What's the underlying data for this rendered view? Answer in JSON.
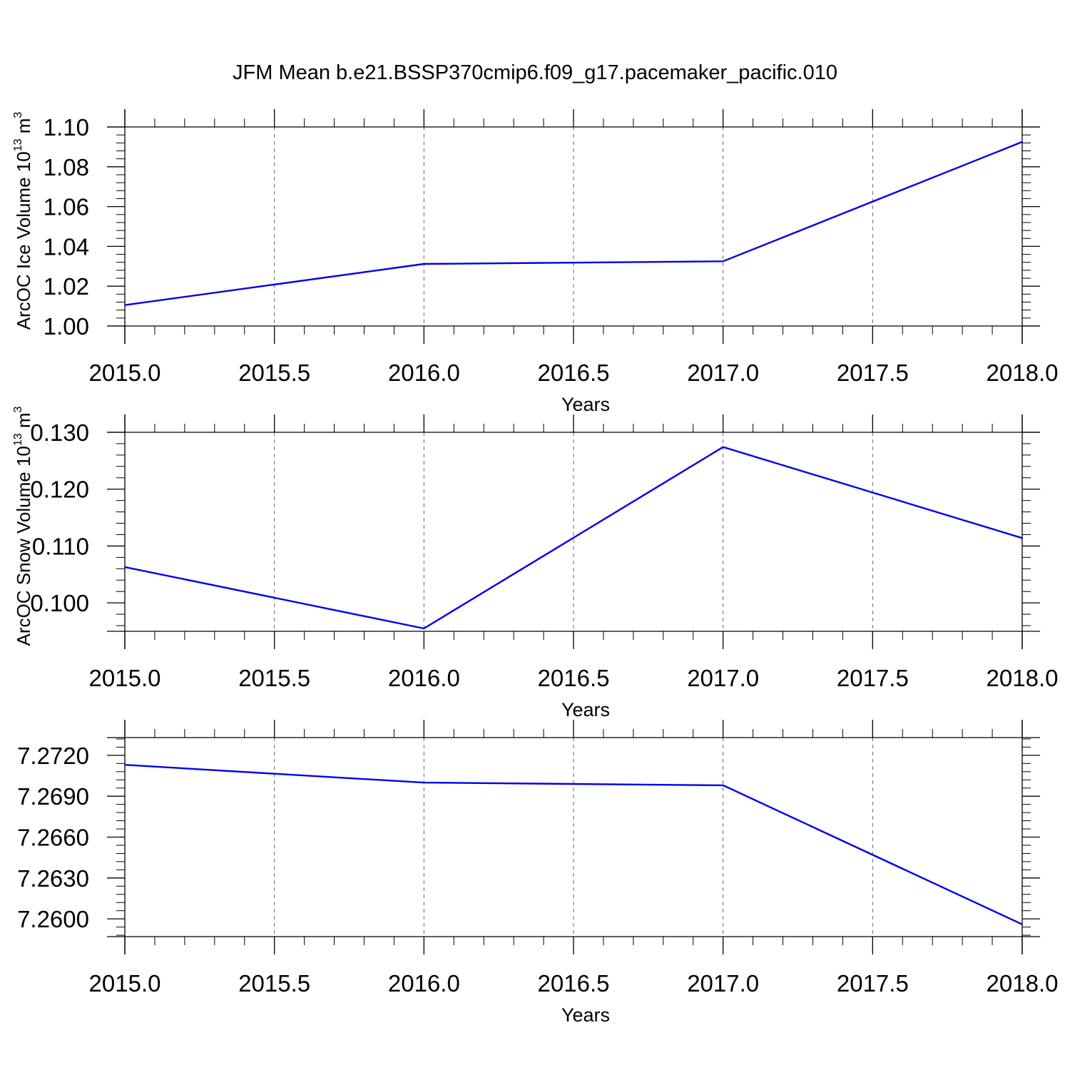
{
  "figure": {
    "title": "JFM Mean b.e21.BSSP370cmip6.f09_g17.pacemaker_pacific.010"
  },
  "colors": {
    "series": "#0000ee",
    "grid": "#666666",
    "frame": "#000000"
  },
  "chart_data": [
    {
      "type": "line",
      "title": "",
      "xlabel": "Years",
      "ylabel": {
        "text": "ArcOC Ice Volume 10",
        "sup1": "13",
        "mid": " m",
        "sup2": "3"
      },
      "xlim": [
        2015.0,
        2018.0
      ],
      "ylim": [
        1.0,
        1.1
      ],
      "xticks": [
        2015.0,
        2015.5,
        2016.0,
        2016.5,
        2017.0,
        2017.5,
        2018.0
      ],
      "xtick_labels": [
        "2015.0",
        "2015.5",
        "2016.0",
        "2016.5",
        "2017.0",
        "2017.5",
        "2018.0"
      ],
      "yticks": [
        1.0,
        1.02,
        1.04,
        1.06,
        1.08,
        1.1
      ],
      "ytick_labels": [
        "1.00",
        "1.02",
        "1.04",
        "1.06",
        "1.08",
        "1.10"
      ],
      "grid": "x-dashed",
      "series": [
        {
          "x": [
            2015.0,
            2016.0,
            2017.0,
            2018.0
          ],
          "y": [
            1.0105,
            1.0312,
            1.0325,
            1.0925
          ]
        }
      ]
    },
    {
      "type": "line",
      "title": "",
      "xlabel": "Years",
      "ylabel": {
        "text": "ArcOC Snow Volume 10",
        "sup1": "13",
        "mid": " m",
        "sup2": "3"
      },
      "xlim": [
        2015.0,
        2018.0
      ],
      "ylim": [
        0.095,
        0.13
      ],
      "xticks": [
        2015.0,
        2015.5,
        2016.0,
        2016.5,
        2017.0,
        2017.5,
        2018.0
      ],
      "xtick_labels": [
        "2015.0",
        "2015.5",
        "2016.0",
        "2016.5",
        "2017.0",
        "2017.5",
        "2018.0"
      ],
      "yticks": [
        0.1,
        0.11,
        0.12,
        0.13
      ],
      "ytick_labels": [
        "0.100",
        "0.110",
        "0.120",
        "0.130"
      ],
      "grid": "x-dashed",
      "series": [
        {
          "x": [
            2015.0,
            2016.0,
            2017.0,
            2018.0
          ],
          "y": [
            0.1063,
            0.0955,
            0.1274,
            0.1114
          ]
        }
      ]
    },
    {
      "type": "line",
      "title": "",
      "xlabel": "Years",
      "ylabel": {
        "text": "",
        "sup1": "",
        "mid": "",
        "sup2": ""
      },
      "xlim": [
        2015.0,
        2018.0
      ],
      "ylim": [
        7.2587,
        7.2733
      ],
      "xticks": [
        2015.0,
        2015.5,
        2016.0,
        2016.5,
        2017.0,
        2017.5,
        2018.0
      ],
      "xtick_labels": [
        "2015.0",
        "2015.5",
        "2016.0",
        "2016.5",
        "2017.0",
        "2017.5",
        "2018.0"
      ],
      "yticks": [
        7.26,
        7.263,
        7.266,
        7.269,
        7.272
      ],
      "ytick_labels": [
        "7.2600",
        "7.2630",
        "7.2660",
        "7.2690",
        "7.2720"
      ],
      "grid": "x-dashed",
      "series": [
        {
          "x": [
            2015.0,
            2016.0,
            2017.0,
            2018.0
          ],
          "y": [
            7.2713,
            7.27,
            7.2698,
            7.2596
          ]
        }
      ]
    }
  ]
}
